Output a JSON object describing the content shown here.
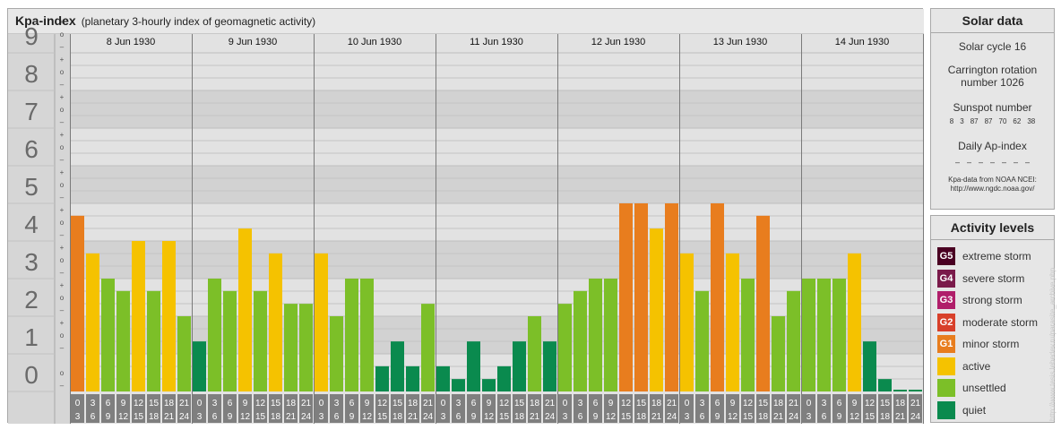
{
  "header": {
    "title": "Kpa-index",
    "subtitle": "(planetary 3-hourly index of geomagnetic activity)"
  },
  "chart_data": {
    "type": "bar",
    "title": "Kpa-index",
    "subtitle": "(planetary 3-hourly index of geomagnetic activity)",
    "ylim": [
      0,
      9
    ],
    "y_ticks": [
      "0",
      "1",
      "2",
      "3",
      "4",
      "5",
      "6",
      "7",
      "8",
      "9"
    ],
    "sub_tick_marks": [
      "+",
      "o",
      "–"
    ],
    "days": [
      "8 Jun 1930",
      "9 Jun 1930",
      "10 Jun 1930",
      "11 Jun 1930",
      "12 Jun 1930",
      "13 Jun 1930",
      "14 Jun 1930"
    ],
    "interval_start_labels": [
      "0",
      "3",
      "6",
      "9",
      "12",
      "15",
      "18",
      "21"
    ],
    "interval_end_labels": [
      "3",
      "6",
      "9",
      "12",
      "15",
      "18",
      "21",
      "24"
    ],
    "values": [
      [
        4.67,
        3.67,
        3.0,
        2.67,
        4.0,
        2.67,
        4.0,
        2.0
      ],
      [
        1.33,
        3.0,
        2.67,
        4.33,
        2.67,
        3.67,
        2.33,
        2.33
      ],
      [
        3.67,
        2.0,
        3.0,
        3.0,
        0.67,
        1.33,
        0.67,
        2.33
      ],
      [
        0.67,
        0.33,
        1.33,
        0.33,
        0.67,
        1.33,
        2.0,
        1.33
      ],
      [
        2.33,
        2.67,
        3.0,
        3.0,
        5.0,
        5.0,
        4.33,
        5.0
      ],
      [
        3.67,
        2.67,
        5.0,
        3.67,
        3.0,
        4.67,
        2.0,
        2.67
      ],
      [
        3.0,
        3.0,
        3.0,
        3.67,
        1.33,
        0.33,
        0.0,
        0.0
      ]
    ],
    "grid": true,
    "legend_placement": "right"
  },
  "solar": {
    "title": "Solar data",
    "cycle": "Solar cycle 16",
    "carrington_line1": "Carrington rotation",
    "carrington_line2": "number 1026",
    "sunspot_label": "Sunspot number",
    "sunspot_values": [
      "8",
      "3",
      "87",
      "87",
      "70",
      "62",
      "38"
    ],
    "ap_label": "Daily Ap-index",
    "ap_values": [
      "–",
      "–",
      "–",
      "–",
      "–",
      "–",
      "–"
    ],
    "source_line1": "Kpa-data from NOAA NCEI:",
    "source_line2": "http://www.ngdc.noaa.gov/"
  },
  "levels": {
    "title": "Activity levels",
    "items": [
      {
        "code": "G5",
        "label": "extreme storm",
        "color": "#4a0022"
      },
      {
        "code": "G4",
        "label": "severe storm",
        "color": "#7a1a4a"
      },
      {
        "code": "G3",
        "label": "strong storm",
        "color": "#b01e6a"
      },
      {
        "code": "G2",
        "label": "moderate storm",
        "color": "#d8402a"
      },
      {
        "code": "G1",
        "label": "minor storm",
        "color": "#e87d1e"
      },
      {
        "code": "",
        "label": "active",
        "color": "#f5c200"
      },
      {
        "code": "",
        "label": "unsettled",
        "color": "#7cbf28"
      },
      {
        "code": "",
        "label": "quiet",
        "color": "#0a8a4e"
      }
    ]
  },
  "watermark": "http://www.tesis.lebedev.ru/parasite_archive.php"
}
